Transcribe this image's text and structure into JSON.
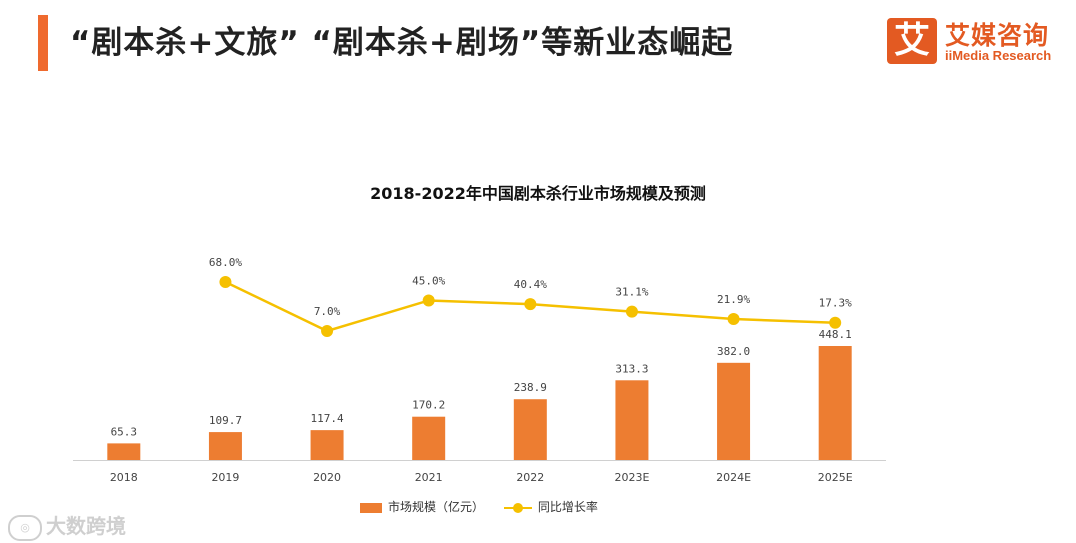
{
  "header": {
    "title": "“剧本杀+文旅”  “剧本杀+剧场”等新业态崛起",
    "logo_mark": "艾",
    "logo_cn": "艾媒咨询",
    "logo_en": "iiMedia Research"
  },
  "watermark": {
    "icon": "eye-icon",
    "text": "大数跨境"
  },
  "colors": {
    "accent": "#ef6a2e",
    "bar": "#ed7d31",
    "line": "#f5c000"
  },
  "chart_data": {
    "type": "bar",
    "title": "2018-2022年中国剧本杀行业市场规模及预测",
    "categories": [
      "2018",
      "2019",
      "2020",
      "2021",
      "2022",
      "2023E",
      "2024E",
      "2025E"
    ],
    "series": [
      {
        "name": "市场规模（亿元）",
        "type": "bar",
        "values": [
          65.3,
          109.7,
          117.4,
          170.2,
          238.9,
          313.3,
          382.0,
          448.1
        ],
        "labels": [
          "65.3",
          "109.7",
          "117.4",
          "170.2",
          "238.9",
          "313.3",
          "382.0",
          "448.1"
        ]
      },
      {
        "name": "同比增长率",
        "type": "line",
        "values": [
          null,
          68.0,
          7.0,
          45.0,
          40.4,
          31.1,
          21.9,
          17.3
        ],
        "labels": [
          "",
          "68.0%",
          "7.0%",
          "45.0%",
          "40.4%",
          "31.1%",
          "21.9%",
          "17.3%"
        ]
      }
    ],
    "y_left_lim": [
      0,
      500
    ],
    "y_right_lim": [
      0,
      80
    ],
    "legend_position": "bottom",
    "grid": false
  }
}
